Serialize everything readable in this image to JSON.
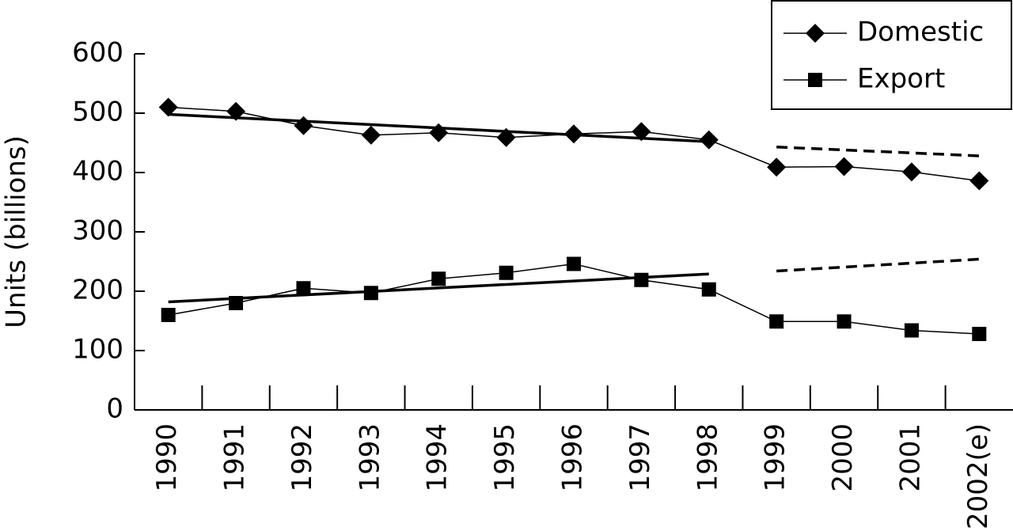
{
  "chart_data": {
    "type": "line",
    "y_label": "Units (billions)",
    "categories": [
      "1990",
      "1991",
      "1992",
      "1993",
      "1994",
      "1995",
      "1996",
      "1997",
      "1998",
      "1999",
      "2000",
      "2001",
      "2002(e)"
    ],
    "series": [
      {
        "name": "Domestic",
        "color": "#000000",
        "marker": "diamond",
        "values": [
          510,
          503,
          479,
          463,
          467,
          459,
          465,
          469,
          455,
          409,
          410,
          401,
          386
        ]
      },
      {
        "name": "Export",
        "color": "#000000",
        "marker": "square",
        "values": [
          160,
          180,
          205,
          197,
          221,
          231,
          246,
          219,
          203,
          149,
          149,
          134,
          128
        ]
      }
    ],
    "trends": [
      {
        "series": 0,
        "from": "1990",
        "to": "1998",
        "values": [
          498,
          452
        ],
        "dashed": false
      },
      {
        "series": 0,
        "from": "1999",
        "to": "2002(e)",
        "values": [
          443,
          428
        ],
        "dashed": true
      },
      {
        "series": 1,
        "from": "1990",
        "to": "1998",
        "values": [
          182,
          229
        ],
        "dashed": false
      },
      {
        "series": 1,
        "from": "1999",
        "to": "2002(e)",
        "values": [
          234,
          254
        ],
        "dashed": true
      }
    ],
    "ylim": [
      0,
      600
    ],
    "yticks": [
      0,
      100,
      200,
      300,
      400,
      500,
      600
    ],
    "grid": false,
    "legend": "top-right"
  }
}
